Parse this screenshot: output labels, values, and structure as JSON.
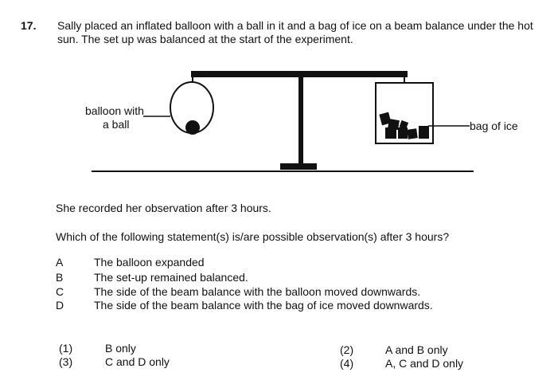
{
  "question": {
    "number": "17.",
    "stem": "Sally placed an inflated balloon with a ball in it and a bag of ice on a beam balance under the hot sun. The set up was balanced at the start of the experiment."
  },
  "diagram": {
    "label_balloon_line1": "balloon with",
    "label_balloon_line2": "a ball",
    "label_ice": "bag of ice"
  },
  "observation_text": "She recorded her observation after 3 hours.",
  "prompt": "Which of the following statement(s) is/are possible observation(s) after 3 hours?",
  "options": [
    {
      "letter": "A",
      "text": "The balloon expanded"
    },
    {
      "letter": "B",
      "text": "The set-up remained balanced."
    },
    {
      "letter": "C",
      "text": "The side of the beam balance with the balloon moved downwards."
    },
    {
      "letter": "D",
      "text": "The side of the beam balance with the bag of ice moved downwards."
    }
  ],
  "answers": [
    {
      "num": "(1)",
      "text": "B only"
    },
    {
      "num": "(2)",
      "text": "A and B only"
    },
    {
      "num": "(3)",
      "text": "C and D only"
    },
    {
      "num": "(4)",
      "text": "A, C and D only"
    }
  ]
}
